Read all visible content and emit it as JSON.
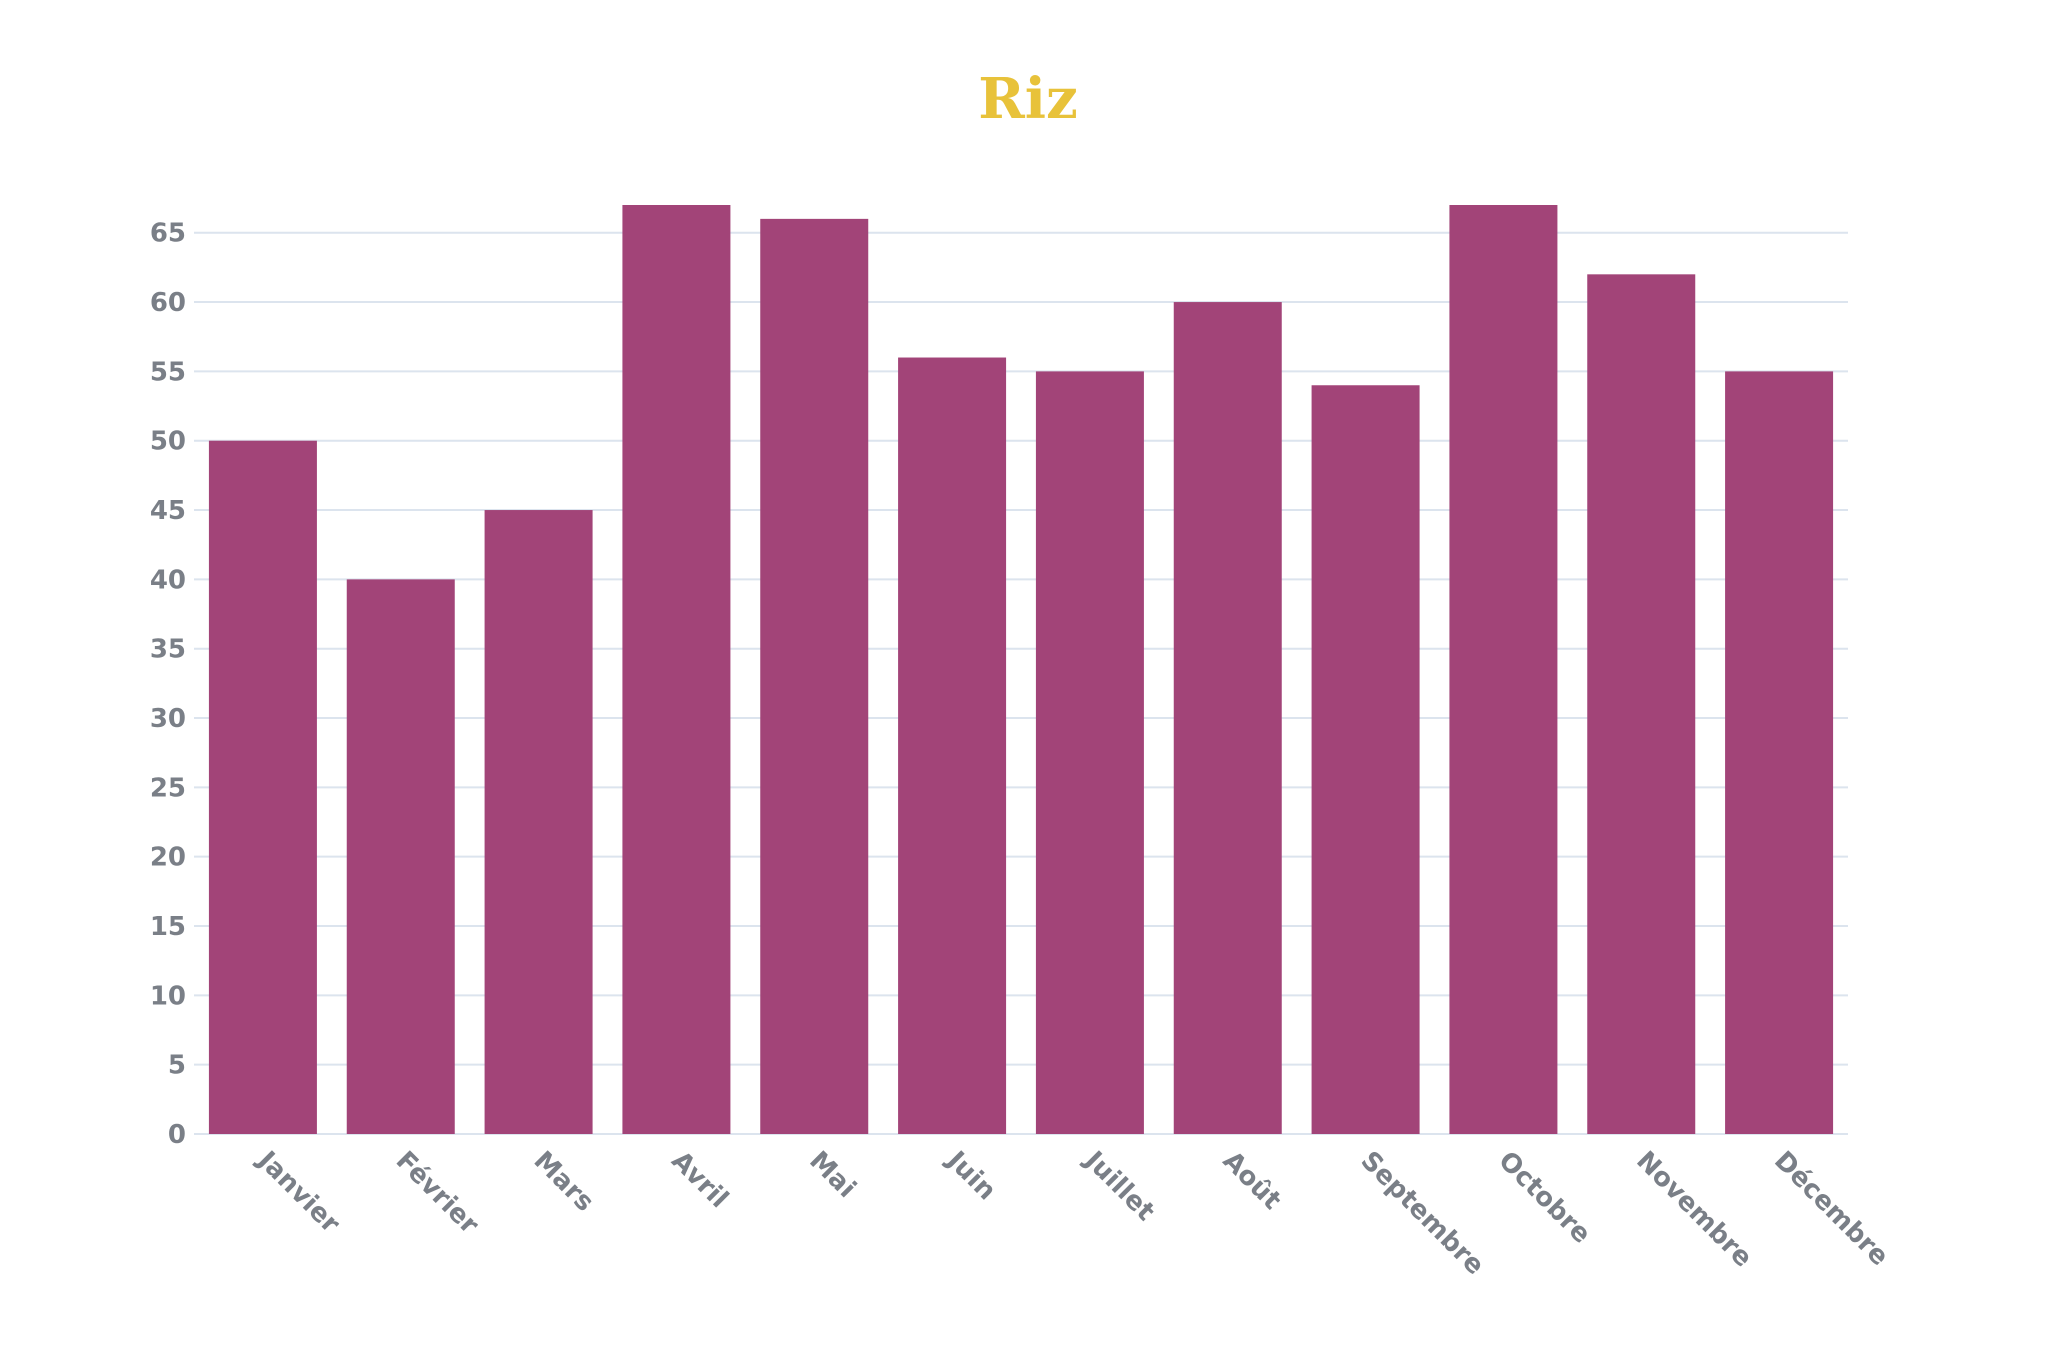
{
  "chart_data": {
    "type": "bar",
    "title": "Riz",
    "xlabel": "",
    "ylabel": "",
    "categories": [
      "Janvier",
      "Février",
      "Mars",
      "Avril",
      "Mai",
      "Juin",
      "Juillet",
      "Août",
      "Septembre",
      "Octobre",
      "Novembre",
      "Décembre"
    ],
    "values": [
      50,
      40,
      45,
      67,
      66,
      56,
      55,
      60,
      54,
      67,
      62,
      55
    ],
    "ylim": [
      0,
      67
    ],
    "yticks": [
      0,
      5,
      10,
      15,
      20,
      25,
      30,
      35,
      40,
      45,
      50,
      55,
      60,
      65
    ],
    "grid": true,
    "legend": "none",
    "colors": {
      "bar": "#a24478",
      "title": "#e8c23a",
      "grid": "#dce4ee",
      "tick_text": "#7a7f87"
    }
  }
}
